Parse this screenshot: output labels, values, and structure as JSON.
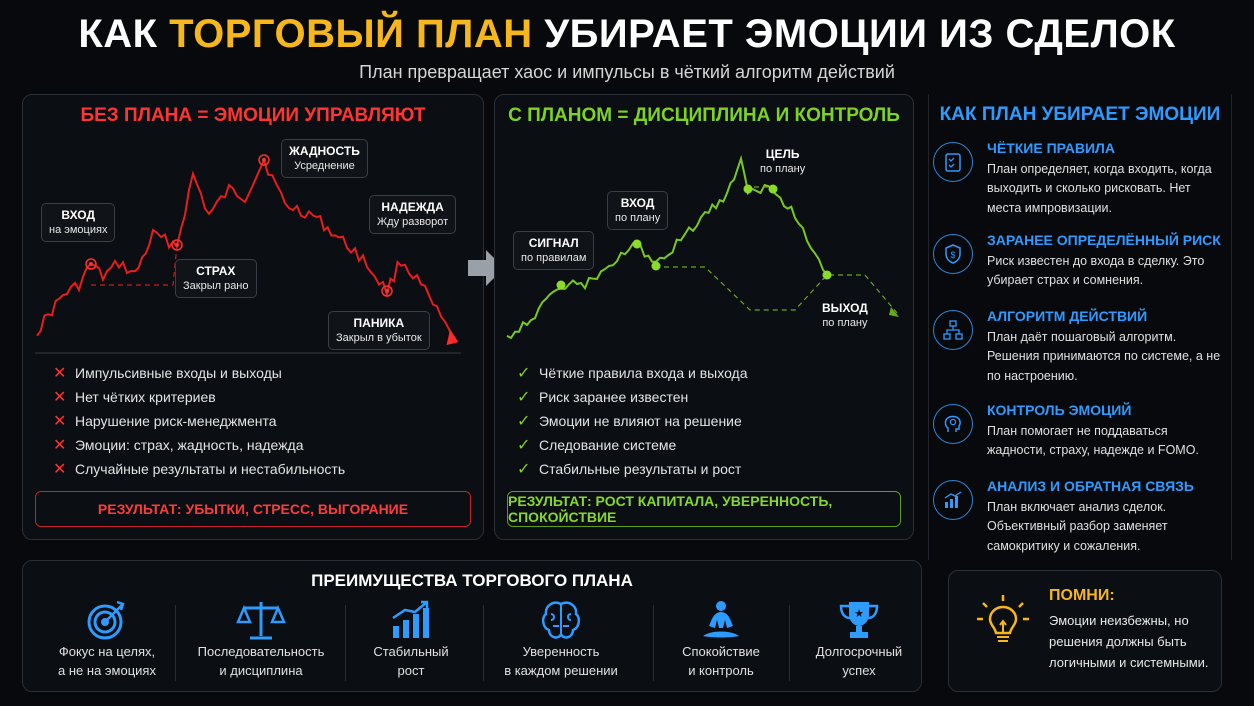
{
  "header": {
    "title_part1": "КАК ",
    "title_accent": "ТОРГОВЫЙ ПЛАН",
    "title_part2": " УБИРАЕТ ЭМОЦИИ ИЗ СДЕЛОК",
    "subtitle": "План превращает хаос и импульсы в чёткий алгоритм действий"
  },
  "colors": {
    "red": "#ff3434",
    "green": "#7ed321",
    "blue": "#2e9bff",
    "accent": "#f5b71c"
  },
  "left": {
    "heading": "БЕЗ ПЛАНА = ЭМОЦИИ УПРАВЛЯЮТ",
    "tags": [
      {
        "title": "ВХОД",
        "sub": "на эмоциях"
      },
      {
        "title": "СТРАХ",
        "sub": "Закрыл рано"
      },
      {
        "title": "ЖАДНОСТЬ",
        "sub": "Усреднение"
      },
      {
        "title": "НАДЕЖДА",
        "sub": "Жду разворот"
      },
      {
        "title": "ПАНИКА",
        "sub": "Закрыл в убыток"
      }
    ],
    "items": [
      "Импульсивные входы и выходы",
      "Нет чётких критериев",
      "Нарушение риск-менеджмента",
      "Эмоции: страх, жадность, надежда",
      "Случайные результаты и нестабильность"
    ],
    "mark": "✕",
    "result": "РЕЗУЛЬТАТ: УБЫТКИ, СТРЕСС, ВЫГОРАНИЕ"
  },
  "middle": {
    "heading": "С ПЛАНОМ = ДИСЦИПЛИНА И КОНТРОЛЬ",
    "tags": [
      {
        "title": "СИГНАЛ",
        "sub": "по правилам"
      },
      {
        "title": "ВХОД",
        "sub": "по плану"
      },
      {
        "title": "ЦЕЛЬ",
        "sub": "по плану"
      },
      {
        "title": "ВЫХОД",
        "sub": "по плану"
      }
    ],
    "items": [
      "Чёткие правила входа и выхода",
      "Риск заранее известен",
      "Эмоции не влияют на решение",
      "Следование системе",
      "Стабильные результаты и рост"
    ],
    "mark": "✓",
    "result": "РЕЗУЛЬТАТ: РОСТ КАПИТАЛА, УВЕРЕННОСТЬ, СПОКОЙСТВИЕ"
  },
  "right": {
    "heading": "КАК  ПЛАН УБИРАЕТ ЭМОЦИИ",
    "rules": [
      {
        "icon": "checklist-icon",
        "title": "ЧЁТКИЕ ПРАВИЛА",
        "text": "План определяет, когда входить, когда выходить и сколько рисковать. Нет места импровизации."
      },
      {
        "icon": "shield-dollar-icon",
        "title": "ЗАРАНЕЕ ОПРЕДЕЛЁННЫЙ РИСК",
        "text": "Риск известен до входа в сделку. Это убирает страх и сомнения."
      },
      {
        "icon": "algorithm-icon",
        "title": "АЛГОРИТМ ДЕЙСТВИЙ",
        "text": "План даёт пошаговый алгоритм. Решения принимаются по системе, а не по настроению."
      },
      {
        "icon": "head-brain-icon",
        "title": "КОНТРОЛЬ ЭМОЦИЙ",
        "text": "План помогает не поддаваться жадности, страху, надежде и FOMO."
      },
      {
        "icon": "bar-chart-icon",
        "title": "АНАЛИЗ И ОБРАТНАЯ СВЯЗЬ",
        "text": "План включает анализ сделок. Объективный разбор заменяет самокритику и сожаления."
      }
    ]
  },
  "benefits": {
    "heading": "ПРЕИМУЩЕСТВА ТОРГОВОГО ПЛАНА",
    "items": [
      {
        "icon": "target-icon",
        "line1": "Фокус на целях,",
        "line2": "а не на эмоциях"
      },
      {
        "icon": "scales-icon",
        "line1": "Последовательность",
        "line2": "и дисциплина"
      },
      {
        "icon": "growth-chart-icon",
        "line1": "Стабильный",
        "line2": "рост"
      },
      {
        "icon": "brain-icon",
        "line1": "Уверенность",
        "line2": "в каждом решении"
      },
      {
        "icon": "meditation-icon",
        "line1": "Спокойствие",
        "line2": "и контроль"
      },
      {
        "icon": "trophy-icon",
        "line1": "Долгосрочный",
        "line2": "успех"
      }
    ]
  },
  "remember": {
    "icon": "lightbulb-icon",
    "title": "ПОМНИ:",
    "text": "Эмоции неизбежны, но решения должны быть логичными и системными."
  }
}
